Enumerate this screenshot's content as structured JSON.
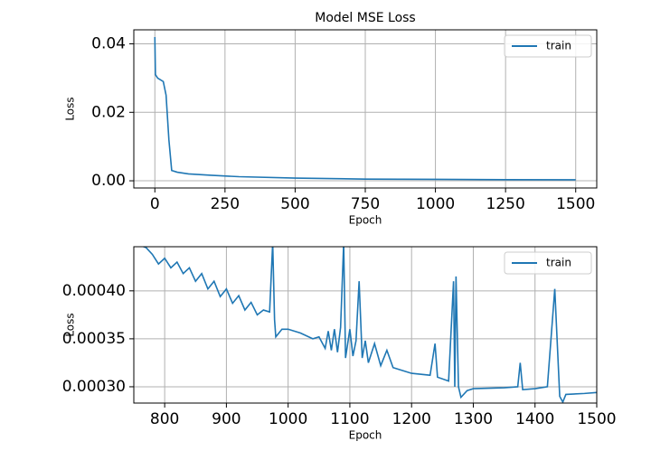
{
  "chart_data": [
    {
      "type": "line",
      "title": "Model MSE Loss",
      "xlabel": "Epoch",
      "ylabel": "Loss",
      "grid": true,
      "legend": "upper right",
      "xlim": [
        -75,
        1575
      ],
      "ylim": [
        -0.0021,
        0.0441
      ],
      "xticks": [
        0,
        250,
        500,
        750,
        1000,
        1250,
        1500
      ],
      "yticks": [
        {
          "value": 0,
          "label": "0.00"
        },
        0.02,
        0.04
      ],
      "x": [
        0,
        2,
        10,
        30,
        40,
        50,
        60,
        80,
        120,
        200,
        300,
        500,
        750,
        1000,
        1250,
        1500
      ],
      "series": [
        {
          "name": "train",
          "color": "#1f77b4",
          "values": [
            0.042,
            0.031,
            0.03,
            0.029,
            0.025,
            0.012,
            0.003,
            0.0025,
            0.002,
            0.0016,
            0.0012,
            0.0008,
            0.0005,
            0.00042,
            0.00032,
            0.00029
          ]
        }
      ]
    },
    {
      "type": "line",
      "xlabel": "Epoch",
      "ylabel": "Loss",
      "grid": true,
      "legend": "upper right",
      "xlim": [
        750,
        1500
      ],
      "ylim": [
        0.000283,
        0.000446
      ],
      "xticks": [
        800,
        900,
        1000,
        1100,
        1200,
        1300,
        1400,
        1500
      ],
      "yticks": [
        {
          "value": 0.0003,
          "label": "0.00030"
        },
        {
          "value": 0.00035,
          "label": "0.00035"
        },
        {
          "value": 0.0004,
          "label": "0.00040"
        }
      ],
      "x": [
        750,
        770,
        780,
        790,
        800,
        810,
        820,
        830,
        840,
        850,
        860,
        870,
        880,
        890,
        900,
        910,
        920,
        930,
        940,
        950,
        960,
        970,
        975,
        978,
        980,
        990,
        1000,
        1020,
        1040,
        1050,
        1060,
        1065,
        1070,
        1075,
        1080,
        1085,
        1090,
        1093,
        1100,
        1105,
        1110,
        1115,
        1120,
        1125,
        1130,
        1140,
        1150,
        1160,
        1170,
        1180,
        1200,
        1230,
        1238,
        1242,
        1260,
        1268,
        1270,
        1272,
        1276,
        1280,
        1290,
        1300,
        1350,
        1372,
        1376,
        1380,
        1400,
        1420,
        1432,
        1440,
        1445,
        1450,
        1480,
        1500
      ],
      "series": [
        {
          "name": "train",
          "color": "#1f77b4",
          "values": [
            0.00045,
            0.000445,
            0.000438,
            0.000428,
            0.000434,
            0.000424,
            0.00043,
            0.000418,
            0.000424,
            0.00041,
            0.000418,
            0.000402,
            0.00041,
            0.000394,
            0.000402,
            0.000387,
            0.000395,
            0.00038,
            0.000388,
            0.000375,
            0.00038,
            0.000378,
            0.00045,
            0.00037,
            0.000352,
            0.00036,
            0.00036,
            0.000356,
            0.00035,
            0.000352,
            0.00034,
            0.000358,
            0.000338,
            0.00036,
            0.000336,
            0.000362,
            0.00045,
            0.00033,
            0.00036,
            0.000332,
            0.000348,
            0.00041,
            0.00033,
            0.000348,
            0.000325,
            0.000345,
            0.000322,
            0.000338,
            0.00032,
            0.000318,
            0.000314,
            0.000312,
            0.000345,
            0.00031,
            0.000306,
            0.00041,
            0.0003,
            0.000415,
            0.0003,
            0.000289,
            0.000296,
            0.000298,
            0.000299,
            0.0003,
            0.000325,
            0.000297,
            0.000298,
            0.0003,
            0.000402,
            0.00029,
            0.000284,
            0.000292,
            0.000293,
            0.000294
          ]
        }
      ]
    }
  ]
}
